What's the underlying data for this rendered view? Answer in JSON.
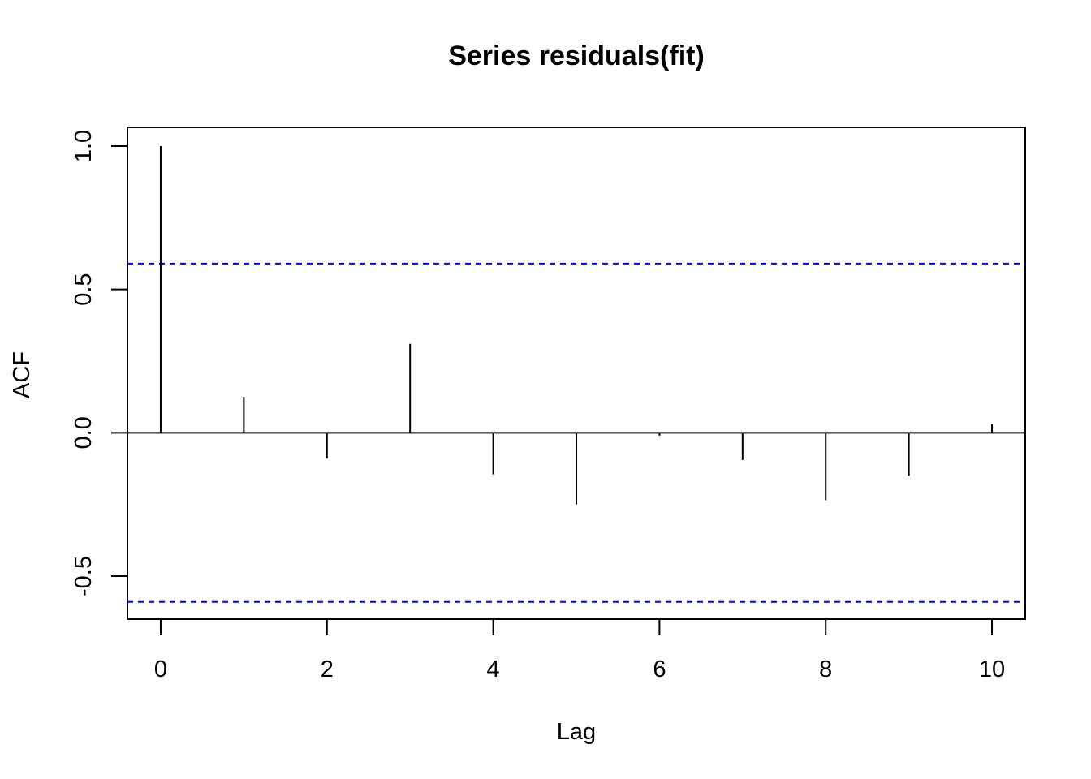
{
  "chart_data": {
    "type": "bar",
    "title": "Series  residuals(fit)",
    "xlabel": "Lag",
    "ylabel": "ACF",
    "x": [
      0,
      1,
      2,
      3,
      4,
      5,
      6,
      7,
      8,
      9,
      10
    ],
    "values": [
      1.0,
      0.125,
      -0.09,
      0.31,
      -0.145,
      -0.25,
      -0.01,
      -0.095,
      -0.235,
      -0.15,
      0.03
    ],
    "xlim": [
      -0.4,
      10.4
    ],
    "ylim": [
      -0.65,
      1.065
    ],
    "x_ticks": [
      0,
      2,
      4,
      6,
      8,
      10
    ],
    "x_tick_labels": [
      "0",
      "2",
      "4",
      "6",
      "8",
      "10"
    ],
    "y_ticks": [
      -0.5,
      0.0,
      0.5,
      1.0
    ],
    "y_tick_labels": [
      "-0.5",
      "0.0",
      "0.5",
      "1.0"
    ],
    "confidence_bounds": [
      0.59,
      -0.59
    ],
    "confidence_color": "#0000ff",
    "series_color": "#000000",
    "grid": false,
    "legend": "none"
  }
}
